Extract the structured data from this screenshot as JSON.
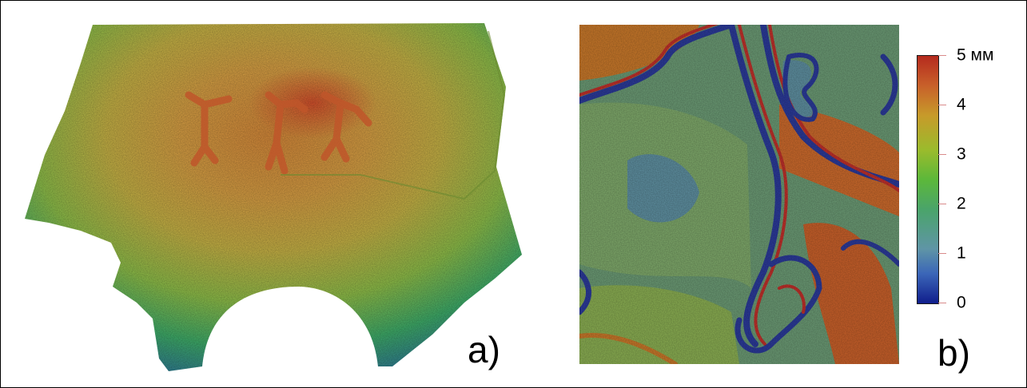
{
  "panels": {
    "a": {
      "label": "a)"
    },
    "b": {
      "label": "b)"
    }
  },
  "colorbar": {
    "ticks": [
      {
        "label": "5 мм",
        "value": 5
      },
      {
        "label": "4",
        "value": 4
      },
      {
        "label": "3",
        "value": 3
      },
      {
        "label": "2",
        "value": 2
      },
      {
        "label": "1",
        "value": 1
      },
      {
        "label": "0",
        "value": 0
      }
    ],
    "range": [
      0,
      5
    ],
    "colors": [
      "#101e8c",
      "#3b66b8",
      "#4aa46a",
      "#5cb83a",
      "#c79a2a",
      "#c8602a",
      "#b52a1e"
    ]
  }
}
